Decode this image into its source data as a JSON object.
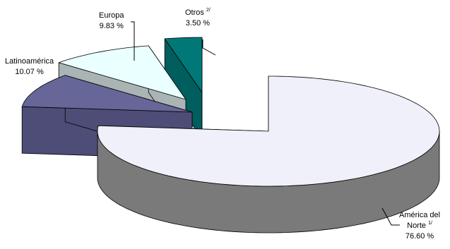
{
  "chart_data": {
    "type": "pie",
    "style": "3d-exploded",
    "legend": "none",
    "slices": [
      {
        "name": "América del Norte",
        "footnote": "1/",
        "value": 76.6,
        "display": "76.60 %",
        "color": "#f0f0fa",
        "side_color": "#7a7a7a",
        "cut_color": "#c8c8d4"
      },
      {
        "name": "Latinoamérica",
        "footnote": "",
        "value": 10.07,
        "display": "10.07 %",
        "color": "#666699",
        "side_color": "#333355",
        "cut_color": "#4d4d77"
      },
      {
        "name": "Europa",
        "footnote": "",
        "value": 9.83,
        "display": "9.83 %",
        "color": "#eaffff",
        "side_color": "#7a7a7a",
        "cut_color": "#aab4b4"
      },
      {
        "name": "Otros",
        "footnote": "2/",
        "value": 3.5,
        "display": "3.50 %",
        "color": "#007878",
        "side_color": "#004444",
        "cut_color": "#005e5e"
      }
    ]
  },
  "labels": {
    "north_america": {
      "line1": "América del",
      "line2": "Norte",
      "footnote": "1/",
      "value": "76.60 %"
    },
    "latam": {
      "name": "Latinoamérica",
      "value": "10.07 %"
    },
    "europe": {
      "name": "Europa",
      "value": "9.83 %"
    },
    "others": {
      "name": "Otros",
      "footnote": "2/",
      "value": "3.50 %"
    }
  }
}
